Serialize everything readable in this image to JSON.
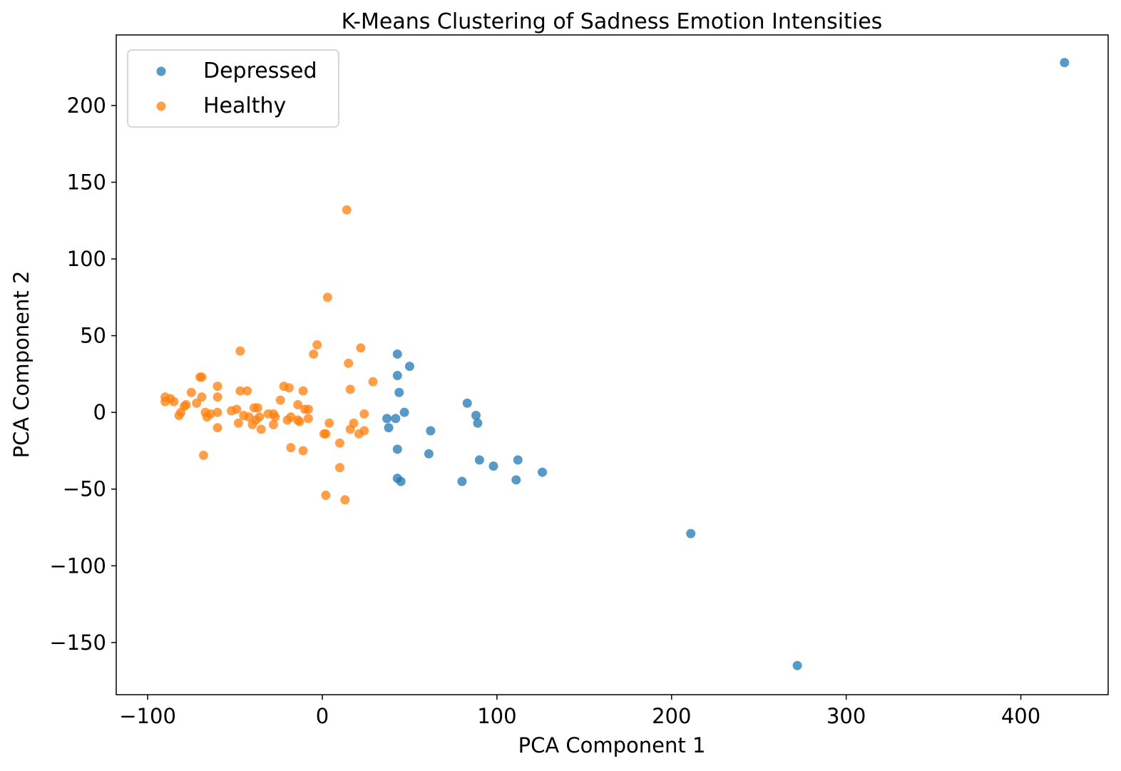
{
  "chart_data": {
    "type": "scatter",
    "title": "K-Means Clustering of Sadness Emotion Intensities",
    "xlabel": "PCA Component 1",
    "ylabel": "PCA Component 2",
    "xlim": [
      -118,
      450
    ],
    "ylim": [
      -184,
      246
    ],
    "xticks": [
      -100,
      0,
      100,
      200,
      300,
      400
    ],
    "yticks": [
      -150,
      -100,
      -50,
      0,
      50,
      100,
      150,
      200
    ],
    "xtick_labels": [
      "−100",
      "0",
      "100",
      "200",
      "300",
      "400"
    ],
    "ytick_labels": [
      "−150",
      "−100",
      "−50",
      "0",
      "50",
      "100",
      "150",
      "200"
    ],
    "grid": false,
    "legend_position": "upper-left",
    "series": [
      {
        "name": "Depressed",
        "color": "#1f77b4",
        "x": [
          425,
          43,
          50,
          43,
          44,
          47,
          37,
          42,
          38,
          62,
          83,
          88,
          89,
          43,
          61,
          90,
          98,
          112,
          126,
          43,
          45,
          80,
          111,
          211,
          272
        ],
        "y": [
          228,
          38,
          30,
          24,
          13,
          0,
          -4,
          -4,
          -10,
          -12,
          6,
          -2,
          -7,
          -24,
          -27,
          -31,
          -35,
          -31,
          -39,
          -43,
          -45,
          -45,
          -44,
          -79,
          -165
        ]
      },
      {
        "name": "Healthy",
        "color": "#ff7f0e",
        "x": [
          14,
          3,
          -47,
          -3,
          -5,
          22,
          15,
          29,
          -70,
          -69,
          -60,
          -22,
          -19,
          -11,
          -43,
          -47,
          -75,
          -60,
          -90,
          -87,
          -69,
          -85,
          -90,
          -24,
          -72,
          -78,
          -79,
          -14,
          -39,
          -37,
          -52,
          -49,
          -8,
          -10,
          -60,
          -67,
          -64,
          -81,
          -82,
          -45,
          -42,
          -28,
          -31,
          -18,
          -36,
          -27,
          -38,
          -8,
          -66,
          -48,
          -40,
          24,
          18,
          4,
          -13,
          -28,
          -35,
          16,
          24,
          -60,
          1,
          2,
          21,
          10,
          -18,
          -11,
          -68,
          10,
          2,
          13,
          16,
          -14,
          -20
        ],
        "y": [
          132,
          75,
          40,
          44,
          38,
          42,
          32,
          20,
          23,
          23,
          17,
          17,
          16,
          14,
          14,
          14,
          13,
          10,
          10,
          9,
          10,
          7,
          7,
          8,
          6,
          5,
          4,
          5,
          3,
          3,
          1,
          2,
          2,
          2,
          0,
          0,
          -1,
          0,
          -2,
          -2,
          -3,
          -1,
          -1,
          -3,
          -3,
          -3,
          -5,
          -4,
          -3,
          -7,
          -8,
          -1,
          -7,
          -7,
          -6,
          -8,
          -11,
          -11,
          -12,
          -10,
          -14,
          -14,
          -14,
          -20,
          -23,
          -25,
          -28,
          -36,
          -54,
          -57,
          15,
          -5,
          -5
        ]
      }
    ]
  }
}
